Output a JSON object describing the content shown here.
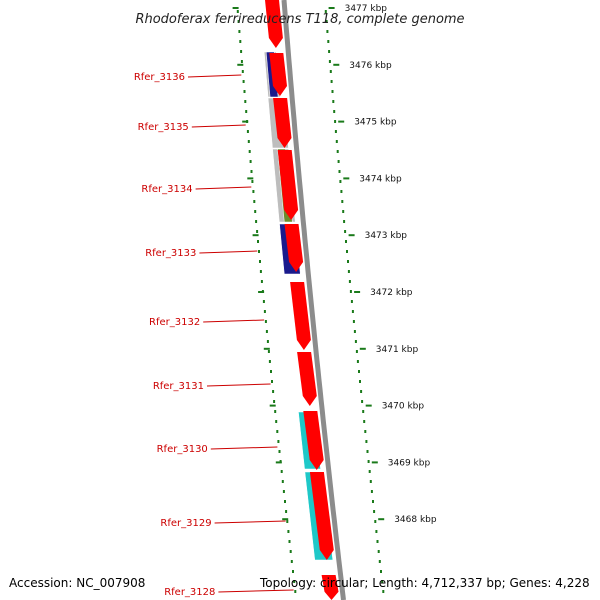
{
  "title": "Rhodoferax ferrireducens T118, complete genome",
  "accession_text": "Accession: NC_007908",
  "topology_text": "Topology: circular; Length: 4,712,337 bp; Genes: 4,228",
  "colors": {
    "backbone": "#8c8c8c",
    "cds": "#ff0000",
    "tick": "#1a7a1a",
    "label": "#cc0000",
    "gray_block": "#bdbdbd",
    "navy_block": "#1a1a8c",
    "olive_block": "#6b8c2a",
    "cyan_block": "#1ec8c8"
  },
  "ticks": [
    "3477 kbp",
    "3476 kbp",
    "3475 kbp",
    "3474 kbp",
    "3473 kbp",
    "3472 kbp",
    "3471 kbp",
    "3470 kbp",
    "3469 kbp",
    "3468 kbp"
  ],
  "genes": [
    "Rfer_3136",
    "Rfer_3135",
    "Rfer_3134",
    "Rfer_3133",
    "Rfer_3132",
    "Rfer_3131",
    "Rfer_3130",
    "Rfer_3129",
    "Rfer_3128"
  ]
}
